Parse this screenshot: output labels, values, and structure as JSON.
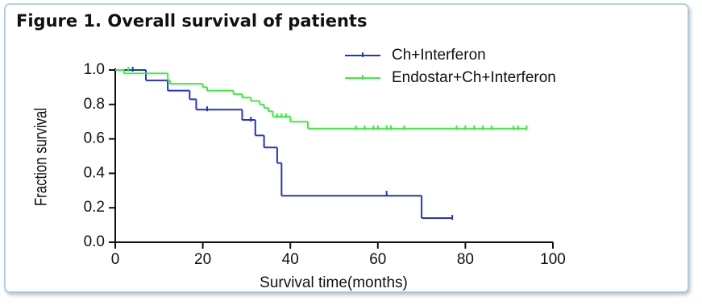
{
  "chart_data": {
    "type": "step",
    "title": "Figure 1. Overall survival of patients",
    "x_label": "Survival time(months)",
    "y_label": "Fraction survival",
    "xlim": [
      0,
      100
    ],
    "xticks": [
      0,
      20,
      40,
      60,
      80,
      100
    ],
    "ylim": [
      0,
      1
    ],
    "yticks": [
      {
        "value": 0,
        "label": "0.0"
      },
      {
        "value": 0.2,
        "label": "0.2"
      },
      {
        "value": 0.4,
        "label": "0.4"
      },
      {
        "value": 0.6,
        "label": "0.6"
      },
      {
        "value": 0.8,
        "label": "0.8"
      },
      {
        "value": 1,
        "label": "1.0"
      }
    ],
    "legend": "top-right",
    "series": [
      {
        "name": "Ch+Interferon",
        "color": "#2433c8",
        "x": [
          0,
          7,
          12,
          17,
          18.5,
          29,
          32,
          34,
          37,
          38,
          70,
          77
        ],
        "values": [
          1,
          0.94,
          0.88,
          0.83,
          0.77,
          0.71,
          0.62,
          0.55,
          0.46,
          0.27,
          0.14,
          0.14
        ],
        "censored": {
          "x": [
            4,
            21,
            31,
            62,
            77
          ],
          "values": [
            1,
            0.77,
            0.71,
            0.28,
            0.14
          ]
        }
      },
      {
        "name": "Endostar+Ch+Interferon",
        "color": "#3cec3c",
        "x": [
          0,
          2,
          12,
          12.5,
          20,
          21,
          27,
          29,
          31,
          33,
          34,
          35,
          36,
          40,
          44,
          94
        ],
        "values": [
          1,
          0.98,
          0.94,
          0.92,
          0.9,
          0.88,
          0.86,
          0.84,
          0.82,
          0.8,
          0.78,
          0.76,
          0.73,
          0.7,
          0.66,
          0.66
        ],
        "censored": {
          "x": [
            3,
            37,
            38,
            39,
            55,
            57,
            59,
            60,
            62,
            63,
            66,
            78,
            80,
            82,
            84,
            86,
            91,
            92,
            94
          ],
          "values": [
            1,
            0.73,
            0.73,
            0.73,
            0.66,
            0.66,
            0.66,
            0.66,
            0.66,
            0.66,
            0.66,
            0.66,
            0.66,
            0.66,
            0.66,
            0.66,
            0.66,
            0.66,
            0.66
          ]
        }
      }
    ]
  }
}
